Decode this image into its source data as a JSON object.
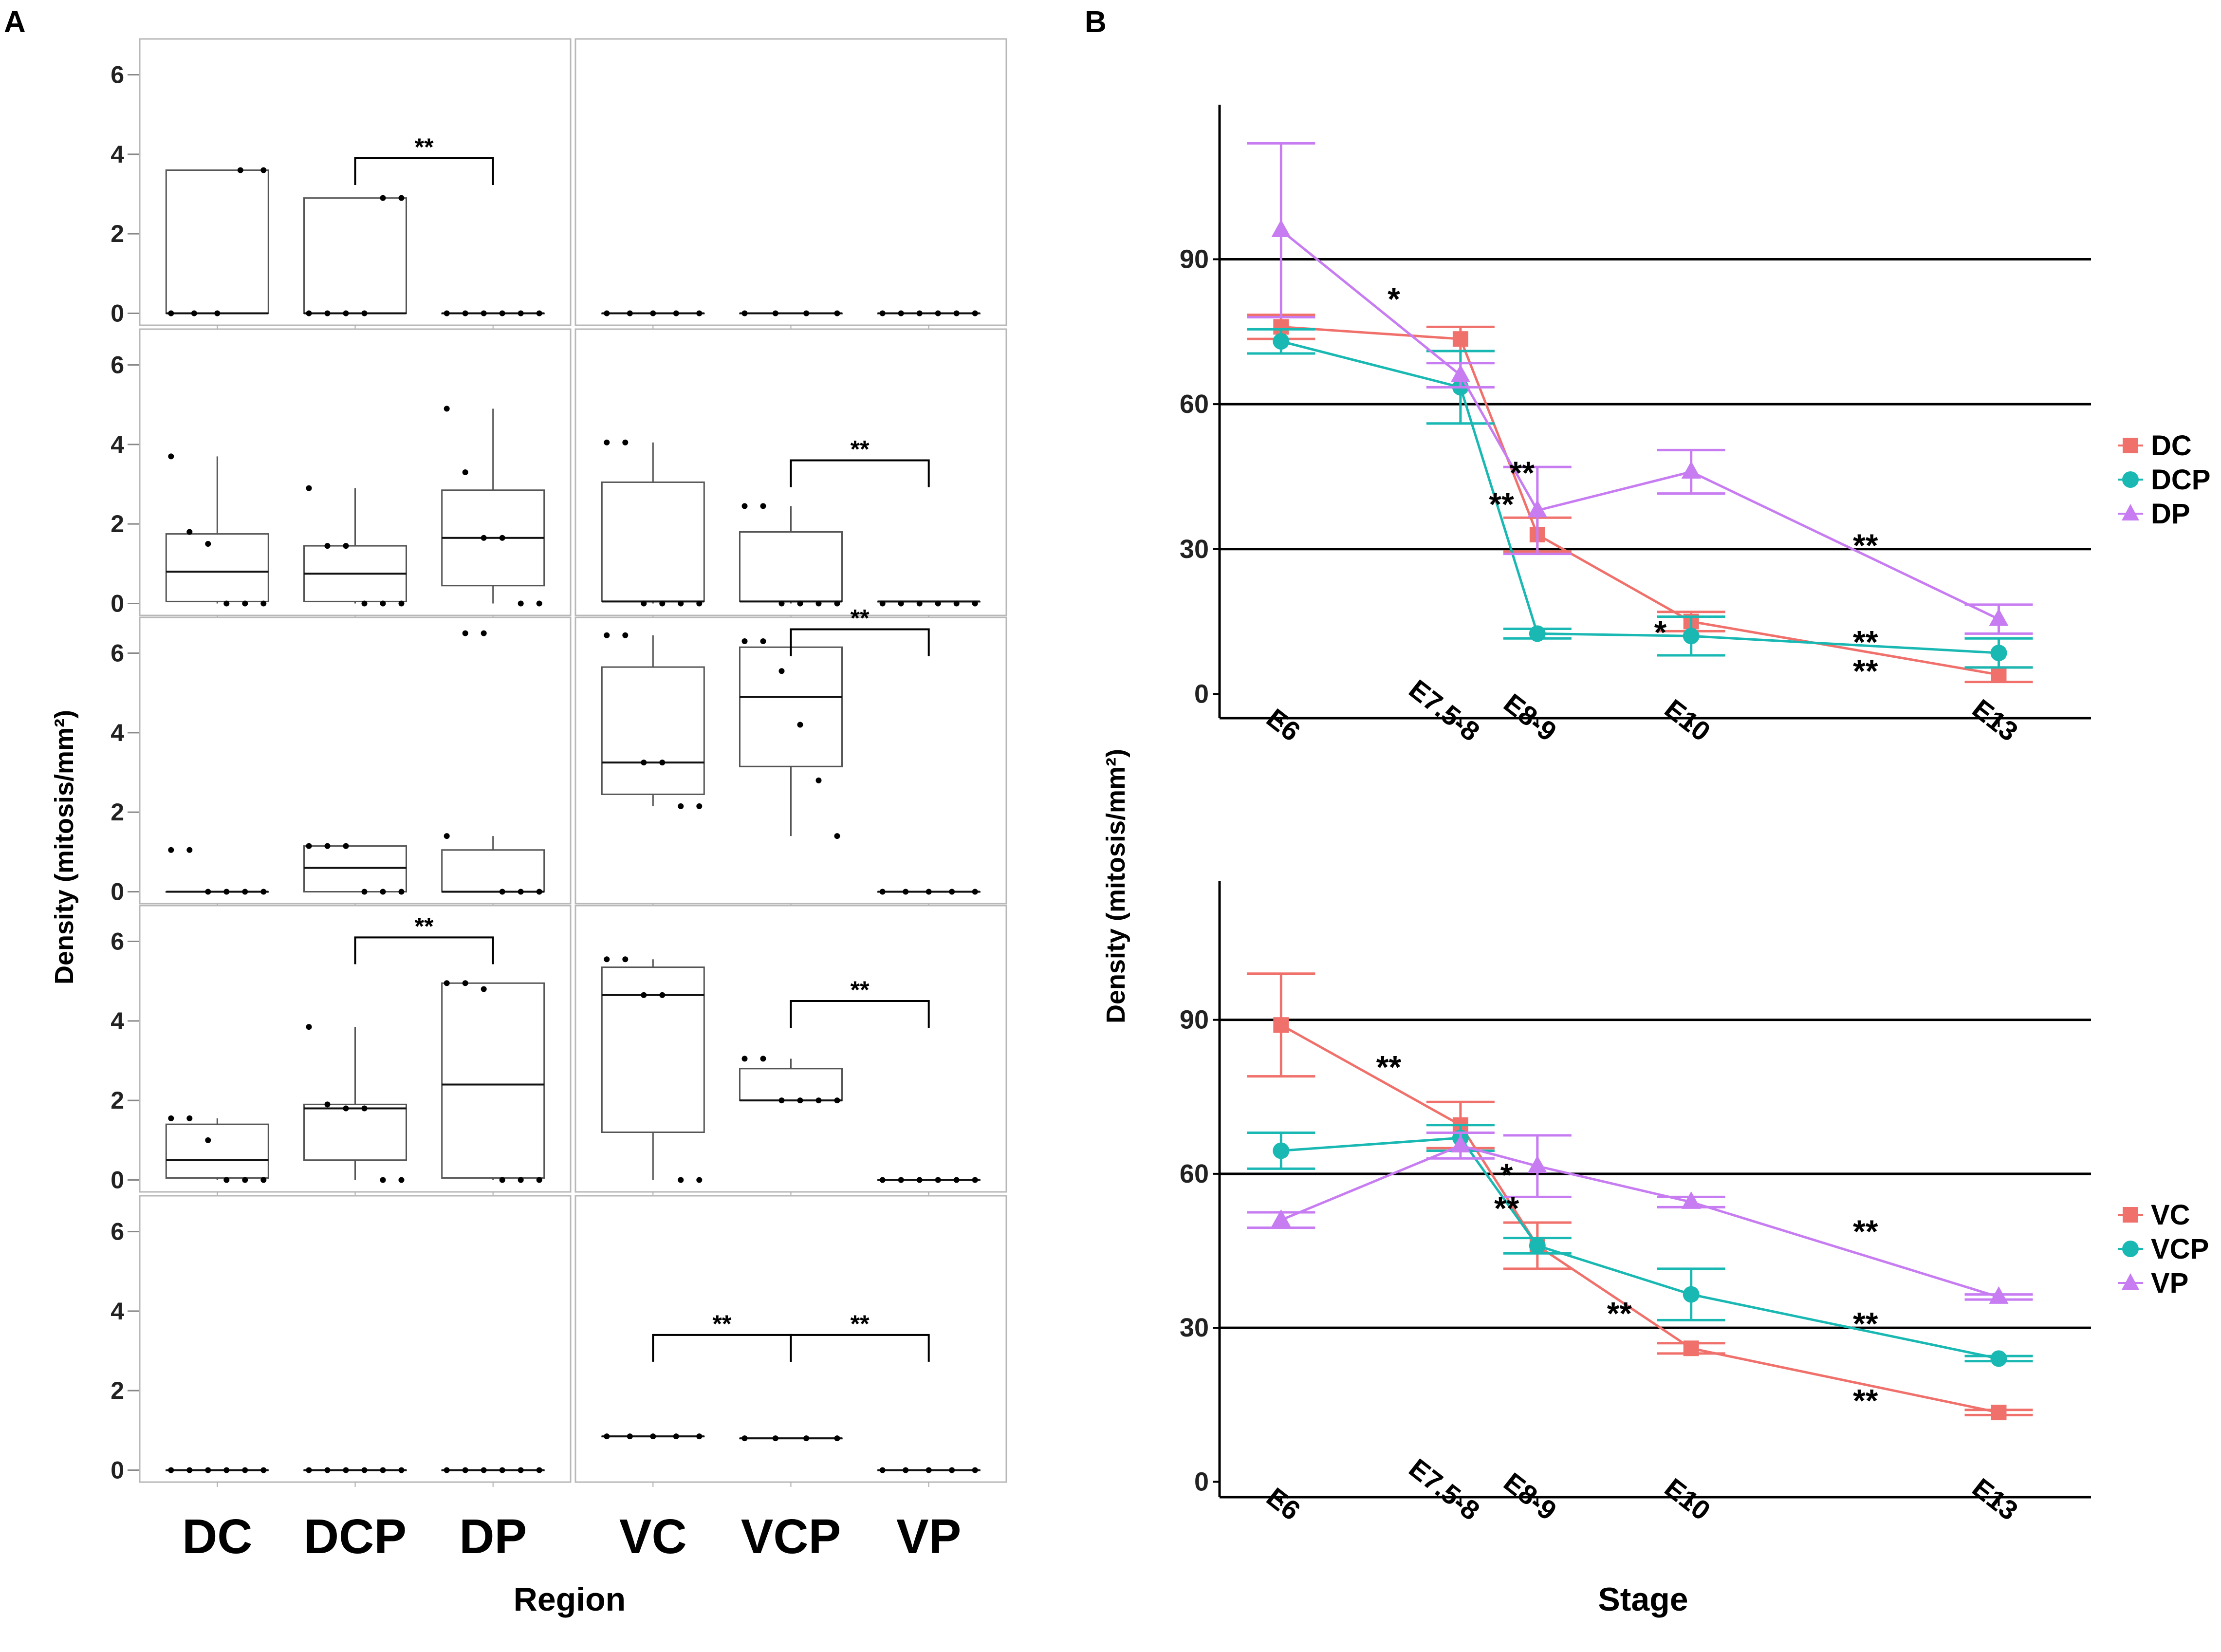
{
  "colors": {
    "DC": "#f0716c",
    "DCP": "#19b8b3",
    "DP": "#c77cf2",
    "VC": "#f0716c",
    "VCP": "#19b8b3",
    "VP": "#c77cf2",
    "box_stroke": "#555555",
    "median": "#111111"
  },
  "panel_labels": {
    "a": "A",
    "b": "B"
  },
  "chart_data": [
    {
      "id": "A",
      "type": "box",
      "title": "",
      "xlabel": "Region",
      "ylabel": "Density (mitosis/mm²)",
      "ylim": [
        -0.3,
        6.9
      ],
      "yticks": [
        0,
        2,
        4,
        6
      ],
      "categories_left": [
        "DC",
        "DCP",
        "DP"
      ],
      "categories_right": [
        "VC",
        "VCP",
        "VP"
      ],
      "rows": [
        {
          "row": 1,
          "left": {
            "boxes": [
              {
                "q1": 0,
                "median": 0,
                "q3": 3.6,
                "wlo": 0,
                "whi": 3.6,
                "points": [
                  0,
                  0,
                  0,
                  3.6,
                  3.6
                ]
              },
              {
                "q1": 0,
                "median": 0,
                "q3": 2.9,
                "wlo": 0,
                "whi": 2.9,
                "points": [
                  0,
                  0,
                  0,
                  0,
                  2.9,
                  2.9
                ]
              },
              {
                "q1": 0,
                "median": 0,
                "q3": 0,
                "wlo": 0,
                "whi": 0,
                "points": [
                  0,
                  0,
                  0,
                  0,
                  0,
                  0
                ]
              }
            ],
            "sig": [
              {
                "from": 1,
                "to": 2,
                "label": "**",
                "y": 3.9
              }
            ]
          },
          "right": {
            "boxes": [
              {
                "q1": 0,
                "median": 0,
                "q3": 0,
                "wlo": 0,
                "whi": 0,
                "points": [
                  0,
                  0,
                  0,
                  0,
                  0
                ]
              },
              {
                "q1": 0,
                "median": 0,
                "q3": 0,
                "wlo": 0,
                "whi": 0,
                "points": [
                  0,
                  0,
                  0,
                  0
                ]
              },
              {
                "q1": 0,
                "median": 0,
                "q3": 0,
                "wlo": 0,
                "whi": 0,
                "points": [
                  0,
                  0,
                  0,
                  0,
                  0,
                  0
                ]
              }
            ],
            "sig": []
          }
        },
        {
          "row": 2,
          "left": {
            "boxes": [
              {
                "q1": 0.05,
                "median": 0.8,
                "q3": 1.75,
                "wlo": 0,
                "whi": 3.7,
                "points": [
                  3.7,
                  1.8,
                  1.5,
                  0,
                  0,
                  0
                ]
              },
              {
                "q1": 0.05,
                "median": 0.75,
                "q3": 1.45,
                "wlo": 0,
                "whi": 2.9,
                "points": [
                  2.9,
                  1.45,
                  1.45,
                  0,
                  0,
                  0
                ]
              },
              {
                "q1": 0.45,
                "median": 1.65,
                "q3": 2.85,
                "wlo": 0,
                "whi": 4.9,
                "points": [
                  4.9,
                  3.3,
                  1.65,
                  1.65,
                  0,
                  0
                ]
              }
            ],
            "sig": []
          },
          "right": {
            "boxes": [
              {
                "q1": 0.05,
                "median": 0.05,
                "q3": 3.05,
                "wlo": 0,
                "whi": 4.05,
                "points": [
                  4.05,
                  4.05,
                  0,
                  0,
                  0,
                  0
                ]
              },
              {
                "q1": 0.05,
                "median": 0.05,
                "q3": 1.8,
                "wlo": 0,
                "whi": 2.45,
                "points": [
                  2.45,
                  2.45,
                  0,
                  0,
                  0,
                  0
                ]
              },
              {
                "q1": 0.05,
                "median": 0.05,
                "q3": 0.05,
                "wlo": 0.05,
                "whi": 0.05,
                "points": [
                  0,
                  0,
                  0,
                  0,
                  0,
                  0
                ]
              }
            ],
            "sig": [
              {
                "from": 1,
                "to": 2,
                "label": "**",
                "y": 3.6
              }
            ]
          }
        },
        {
          "row": 3,
          "left": {
            "boxes": [
              {
                "q1": 0,
                "median": 0,
                "q3": 0,
                "wlo": 0,
                "whi": 0,
                "points": [
                  1.05,
                  1.05,
                  0,
                  0,
                  0,
                  0
                ]
              },
              {
                "q1": 0,
                "median": 0.6,
                "q3": 1.15,
                "wlo": 0,
                "whi": 1.15,
                "points": [
                  1.15,
                  1.15,
                  1.15,
                  0,
                  0,
                  0
                ]
              },
              {
                "q1": 0,
                "median": 0,
                "q3": 1.05,
                "wlo": 0,
                "whi": 1.4,
                "points": [
                  1.4,
                  6.5,
                  6.5,
                  0,
                  0,
                  0
                ]
              }
            ],
            "sig": []
          },
          "right": {
            "boxes": [
              {
                "q1": 2.45,
                "median": 3.25,
                "q3": 5.65,
                "wlo": 2.15,
                "whi": 6.45,
                "points": [
                  6.45,
                  6.45,
                  3.25,
                  3.25,
                  2.15,
                  2.15
                ]
              },
              {
                "q1": 3.15,
                "median": 4.9,
                "q3": 6.15,
                "wlo": 1.4,
                "whi": 6.3,
                "points": [
                  6.3,
                  6.3,
                  5.55,
                  4.2,
                  2.8,
                  1.4
                ]
              },
              {
                "q1": 0,
                "median": 0,
                "q3": 0,
                "wlo": 0,
                "whi": 0,
                "points": [
                  0,
                  0,
                  0,
                  0,
                  0
                ]
              }
            ],
            "sig": [
              {
                "from": 1,
                "to": 2,
                "label": "**",
                "y": 6.6
              }
            ]
          }
        },
        {
          "row": 4,
          "left": {
            "boxes": [
              {
                "q1": 0.05,
                "median": 0.5,
                "q3": 1.4,
                "wlo": 0,
                "whi": 1.55,
                "points": [
                  1.55,
                  1.55,
                  1.0,
                  0,
                  0,
                  0
                ]
              },
              {
                "q1": 0.5,
                "median": 1.8,
                "q3": 1.9,
                "wlo": 0,
                "whi": 3.85,
                "points": [
                  3.85,
                  1.9,
                  1.8,
                  1.8,
                  0,
                  0
                ]
              },
              {
                "q1": 0.05,
                "median": 2.4,
                "q3": 4.95,
                "wlo": 0,
                "whi": 4.95,
                "points": [
                  4.95,
                  4.95,
                  4.8,
                  0,
                  0,
                  0
                ]
              }
            ],
            "sig": [
              {
                "from": 1,
                "to": 2,
                "label": "**",
                "y": 6.1
              }
            ]
          },
          "right": {
            "boxes": [
              {
                "q1": 1.2,
                "median": 4.65,
                "q3": 5.35,
                "wlo": 0,
                "whi": 5.55,
                "points": [
                  5.55,
                  5.55,
                  4.65,
                  4.65,
                  0,
                  0
                ]
              },
              {
                "q1": 2.0,
                "median": 2.0,
                "q3": 2.8,
                "wlo": 2.0,
                "whi": 3.05,
                "points": [
                  3.05,
                  3.05,
                  2.0,
                  2.0,
                  2.0,
                  2.0
                ]
              },
              {
                "q1": 0,
                "median": 0,
                "q3": 0,
                "wlo": 0,
                "whi": 0,
                "points": [
                  0,
                  0,
                  0,
                  0,
                  0,
                  0
                ]
              }
            ],
            "sig": [
              {
                "from": 1,
                "to": 2,
                "label": "**",
                "y": 4.5
              }
            ]
          }
        },
        {
          "row": 5,
          "left": {
            "boxes": [
              {
                "q1": 0,
                "median": 0,
                "q3": 0,
                "wlo": 0,
                "whi": 0,
                "points": [
                  0,
                  0,
                  0,
                  0,
                  0,
                  0
                ]
              },
              {
                "q1": 0,
                "median": 0,
                "q3": 0,
                "wlo": 0,
                "whi": 0,
                "points": [
                  0,
                  0,
                  0,
                  0,
                  0,
                  0
                ]
              },
              {
                "q1": 0,
                "median": 0,
                "q3": 0,
                "wlo": 0,
                "whi": 0,
                "points": [
                  0,
                  0,
                  0,
                  0,
                  0,
                  0
                ]
              }
            ],
            "sig": []
          },
          "right": {
            "boxes": [
              {
                "q1": 0.85,
                "median": 0.85,
                "q3": 0.85,
                "wlo": 0.85,
                "whi": 0.85,
                "points": [
                  0.85,
                  0.85,
                  0.85,
                  0.85,
                  0.85
                ]
              },
              {
                "q1": 0.8,
                "median": 0.8,
                "q3": 0.8,
                "wlo": 0.8,
                "whi": 0.8,
                "points": [
                  0.8,
                  0.8,
                  0.8,
                  0.8
                ]
              },
              {
                "q1": 0,
                "median": 0,
                "q3": 0,
                "wlo": 0,
                "whi": 0,
                "points": [
                  0,
                  0,
                  0,
                  0,
                  0
                ]
              }
            ],
            "sig": [
              {
                "from": 0,
                "to": 1,
                "label": "**",
                "y": 3.4
              },
              {
                "from": 1,
                "to": 2,
                "label": "**",
                "y": 3.4
              }
            ]
          }
        }
      ]
    },
    {
      "id": "B-top",
      "type": "line",
      "title": "",
      "xlabel": "",
      "ylabel": "Density (mitosis/mm²)",
      "x": [
        6,
        7.75,
        8.5,
        10,
        13
      ],
      "xticklabels": [
        "E6",
        "E7.5-8",
        "E8-9",
        "E10",
        "E13"
      ],
      "ylim": [
        -5,
        122
      ],
      "yticks": [
        0,
        30,
        60,
        90
      ],
      "legend_position": "right",
      "series": [
        {
          "name": "DC",
          "marker": "square",
          "values": [
            76,
            73.5,
            33,
            15,
            4
          ],
          "err": [
            2.5,
            2.5,
            3.5,
            2,
            1.5
          ]
        },
        {
          "name": "DCP",
          "marker": "circle",
          "values": [
            73,
            63.5,
            12.5,
            12,
            8.5
          ],
          "err": [
            2.5,
            7.5,
            1,
            4,
            3
          ]
        },
        {
          "name": "DP",
          "marker": "triangle",
          "values": [
            96,
            66,
            38,
            46,
            15.5
          ],
          "err": [
            18,
            2.5,
            9,
            4.5,
            3
          ]
        }
      ],
      "annotations": [
        {
          "text": "*",
          "x": 7.1,
          "y": 82
        },
        {
          "text": "**",
          "x": 8.35,
          "y": 46
        },
        {
          "text": "**",
          "x": 8.15,
          "y": 39.5
        },
        {
          "text": "*",
          "x": 9.7,
          "y": 13
        },
        {
          "text": "**",
          "x": 11.7,
          "y": 31
        },
        {
          "text": "**",
          "x": 11.7,
          "y": 11
        },
        {
          "text": "**",
          "x": 11.7,
          "y": 5
        }
      ]
    },
    {
      "id": "B-bottom",
      "type": "line",
      "title": "",
      "xlabel": "Stage",
      "ylabel": "",
      "x": [
        6,
        7.75,
        8.5,
        10,
        13
      ],
      "xticklabels": [
        "E6",
        "E7.5-8",
        "E8-9",
        "E10",
        "E13"
      ],
      "ylim": [
        -3,
        117
      ],
      "yticks": [
        0,
        30,
        60,
        90
      ],
      "legend_position": "right",
      "series": [
        {
          "name": "VC",
          "marker": "square",
          "values": [
            89,
            69.5,
            46,
            26,
            13.5
          ],
          "err": [
            10,
            4.5,
            4.5,
            1,
            0.5
          ]
        },
        {
          "name": "VCP",
          "marker": "circle",
          "values": [
            64.5,
            67,
            46,
            36.5,
            24
          ],
          "err": [
            3.5,
            2.5,
            1.5,
            5,
            0.5
          ]
        },
        {
          "name": "VP",
          "marker": "triangle",
          "values": [
            51,
            65.5,
            61.5,
            54.5,
            36
          ],
          "err": [
            1.5,
            2.5,
            6,
            1,
            0.5
          ]
        }
      ],
      "annotations": [
        {
          "text": "**",
          "x": 7.05,
          "y": 81
        },
        {
          "text": "*",
          "x": 8.2,
          "y": 60
        },
        {
          "text": "**",
          "x": 8.2,
          "y": 53.5
        },
        {
          "text": "**",
          "x": 9.3,
          "y": 33
        },
        {
          "text": "**",
          "x": 11.7,
          "y": 49
        },
        {
          "text": "**",
          "x": 11.7,
          "y": 31
        },
        {
          "text": "**",
          "x": 11.7,
          "y": 16
        }
      ]
    }
  ]
}
